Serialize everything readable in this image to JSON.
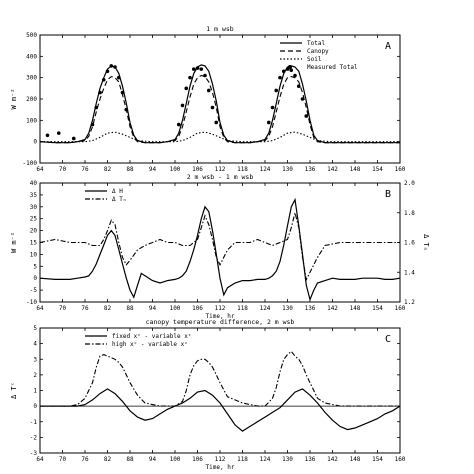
{
  "panel_titles": {
    "A": "1 m wsb",
    "B": "2 m wsb - 1 m wsb",
    "C": "canopy temperature difference, 2 m wsb"
  },
  "chart_data": [
    {
      "id": "A",
      "type": "line",
      "title": "1 m wsb",
      "panel_label": "A",
      "ylabel": "W m⁻²",
      "xlabel": "",
      "xlim": [
        64,
        160
      ],
      "ylim": [
        -100,
        500
      ],
      "xticks": [
        64,
        70,
        76,
        82,
        88,
        94,
        100,
        106,
        112,
        118,
        124,
        130,
        136,
        142,
        148,
        154,
        160
      ],
      "yticks": [
        -100,
        0,
        100,
        200,
        300,
        400,
        500
      ],
      "tick_labels_y": [
        "-100",
        "0",
        "100",
        "200",
        "300",
        "400",
        "500"
      ],
      "legend_position": "top-right",
      "series": [
        {
          "name": "Total",
          "style": "solid",
          "x": [
            64,
            68,
            72,
            74,
            76,
            77,
            78,
            79,
            80,
            81,
            82,
            83,
            84,
            85,
            86,
            87,
            88,
            89,
            90,
            92,
            96,
            98,
            100,
            101,
            102,
            103,
            104,
            105,
            106,
            107,
            108,
            109,
            110,
            111,
            112,
            113,
            114,
            116,
            120,
            122,
            124,
            125,
            126,
            127,
            128,
            129,
            130,
            131,
            132,
            133,
            134,
            135,
            136,
            137,
            138,
            140,
            144,
            148,
            152,
            156,
            160
          ],
          "y": [
            0,
            -5,
            -5,
            0,
            10,
            40,
            100,
            180,
            250,
            300,
            340,
            355,
            350,
            320,
            260,
            180,
            90,
            30,
            5,
            -5,
            -5,
            0,
            10,
            40,
            100,
            180,
            260,
            320,
            350,
            360,
            355,
            330,
            270,
            190,
            90,
            30,
            5,
            -5,
            -5,
            0,
            10,
            40,
            100,
            180,
            260,
            320,
            350,
            355,
            350,
            330,
            270,
            190,
            100,
            30,
            5,
            -5,
            -5,
            -5,
            -5,
            -5,
            -5
          ]
        },
        {
          "name": "Canopy",
          "style": "dashed",
          "x": [
            64,
            68,
            72,
            74,
            76,
            77,
            78,
            79,
            80,
            81,
            82,
            83,
            84,
            85,
            86,
            87,
            88,
            89,
            90,
            92,
            96,
            98,
            100,
            101,
            102,
            103,
            104,
            105,
            106,
            107,
            108,
            109,
            110,
            111,
            112,
            113,
            114,
            116,
            120,
            122,
            124,
            125,
            126,
            127,
            128,
            129,
            130,
            131,
            132,
            133,
            134,
            135,
            136,
            137,
            138,
            140,
            144,
            148,
            152,
            156,
            160
          ],
          "y": [
            0,
            -5,
            -5,
            0,
            5,
            25,
            70,
            140,
            200,
            250,
            290,
            305,
            300,
            280,
            220,
            150,
            70,
            20,
            0,
            -5,
            -5,
            0,
            5,
            25,
            70,
            140,
            210,
            270,
            300,
            310,
            305,
            280,
            230,
            160,
            70,
            20,
            0,
            -5,
            -5,
            0,
            5,
            25,
            70,
            140,
            210,
            270,
            300,
            305,
            300,
            280,
            230,
            160,
            80,
            20,
            0,
            -5,
            -5,
            -5,
            -5,
            -5,
            -5
          ]
        },
        {
          "name": "Soil",
          "style": "dotted",
          "x": [
            64,
            70,
            76,
            78,
            80,
            82,
            84,
            86,
            88,
            90,
            94,
            100,
            102,
            104,
            106,
            108,
            110,
            112,
            114,
            118,
            124,
            126,
            128,
            130,
            132,
            134,
            136,
            138,
            142,
            148,
            154,
            160
          ],
          "y": [
            0,
            0,
            0,
            5,
            20,
            40,
            45,
            35,
            20,
            5,
            0,
            0,
            5,
            20,
            40,
            45,
            35,
            20,
            5,
            0,
            0,
            5,
            20,
            40,
            45,
            35,
            20,
            5,
            0,
            0,
            0,
            0
          ]
        },
        {
          "name": "Measured Total",
          "style": "markers",
          "x": [
            66,
            69,
            73,
            78,
            79,
            80,
            81,
            82,
            83,
            84,
            85,
            86,
            87,
            101,
            102,
            103,
            104,
            105,
            106,
            107,
            108,
            109,
            110,
            111,
            125,
            126,
            127,
            128,
            129,
            130,
            131,
            132,
            133,
            134,
            135
          ],
          "y": [
            30,
            40,
            15,
            80,
            160,
            230,
            290,
            330,
            355,
            350,
            300,
            230,
            150,
            80,
            170,
            250,
            300,
            340,
            345,
            340,
            310,
            240,
            160,
            90,
            90,
            160,
            240,
            300,
            330,
            340,
            335,
            310,
            260,
            200,
            120
          ]
        }
      ]
    },
    {
      "id": "B",
      "type": "line",
      "title": "2 m wsb - 1 m wsb",
      "panel_label": "B",
      "ylabel": "W m⁻²",
      "ylabel_right": "Δ Tₙ",
      "xlabel": "Time, hr",
      "xlim": [
        64,
        160
      ],
      "ylim": [
        -10,
        40
      ],
      "y2lim": [
        1.2,
        2.0
      ],
      "xticks": [
        64,
        70,
        76,
        82,
        88,
        94,
        100,
        106,
        112,
        118,
        124,
        130,
        136,
        142,
        148,
        154,
        160
      ],
      "yticks": [
        -10,
        -5,
        0,
        5,
        10,
        15,
        20,
        25,
        30,
        35,
        40
      ],
      "y2ticks": [
        1.2,
        1.4,
        1.6,
        1.8,
        2.0
      ],
      "tick_labels_y": [
        "-10",
        "-5",
        "0",
        "5",
        "10",
        "15",
        "20",
        "25",
        "30",
        "35",
        "40"
      ],
      "tick_labels_y2": [
        "1.2",
        "1.4",
        "1.6",
        "1.8",
        "2.0"
      ],
      "legend_position": "top-left",
      "series": [
        {
          "name": "Δ H",
          "style": "solid",
          "axis": "left",
          "x": [
            64,
            68,
            72,
            74,
            76,
            77,
            78,
            79,
            80,
            81,
            82,
            83,
            84,
            85,
            86,
            87,
            88,
            89,
            90,
            91,
            92,
            94,
            96,
            98,
            100,
            101,
            102,
            103,
            104,
            105,
            106,
            107,
            108,
            109,
            110,
            111,
            112,
            113,
            114,
            116,
            118,
            120,
            122,
            124,
            125,
            126,
            127,
            128,
            129,
            130,
            131,
            132,
            133,
            134,
            135,
            136,
            137,
            138,
            140,
            142,
            144,
            146,
            148,
            150,
            152,
            154,
            156,
            158,
            160
          ],
          "y": [
            0,
            -0.5,
            -0.5,
            0,
            0.5,
            1,
            3,
            6,
            10,
            14,
            18,
            20,
            18,
            12,
            6,
            0,
            -5,
            -8,
            -3,
            2,
            1,
            -1,
            -2,
            -1,
            -0.5,
            0,
            1,
            3,
            7,
            12,
            18,
            25,
            30,
            28,
            20,
            10,
            0,
            -7,
            -4,
            -2,
            -1,
            -1,
            -0.5,
            -0.5,
            0,
            1,
            3,
            7,
            14,
            22,
            30,
            33,
            22,
            10,
            -3,
            -9,
            -5,
            -2,
            -1,
            0,
            -0.5,
            -0.5,
            -0.5,
            0,
            0,
            0,
            -0.5,
            -0.5,
            0
          ]
        },
        {
          "name": "Δ Tₙ",
          "style": "dash-dot",
          "axis": "right",
          "x": [
            64,
            68,
            72,
            74,
            76,
            78,
            80,
            81,
            82,
            83,
            84,
            85,
            86,
            87,
            88,
            90,
            92,
            94,
            96,
            98,
            100,
            102,
            104,
            106,
            107,
            108,
            109,
            110,
            111,
            112,
            114,
            116,
            118,
            120,
            122,
            124,
            126,
            128,
            130,
            131,
            132,
            133,
            134,
            135,
            136,
            138,
            140,
            144,
            148,
            152,
            156,
            160
          ],
          "y": [
            1.6,
            1.62,
            1.6,
            1.6,
            1.6,
            1.58,
            1.58,
            1.62,
            1.68,
            1.75,
            1.72,
            1.6,
            1.5,
            1.45,
            1.48,
            1.55,
            1.58,
            1.6,
            1.62,
            1.6,
            1.6,
            1.58,
            1.58,
            1.62,
            1.7,
            1.78,
            1.72,
            1.62,
            1.5,
            1.45,
            1.55,
            1.6,
            1.6,
            1.6,
            1.62,
            1.6,
            1.58,
            1.6,
            1.62,
            1.7,
            1.8,
            1.7,
            1.5,
            1.35,
            1.4,
            1.5,
            1.58,
            1.6,
            1.6,
            1.6,
            1.6,
            1.6
          ]
        }
      ]
    },
    {
      "id": "C",
      "type": "line",
      "title": "canopy temperature difference, 2 m wsb",
      "panel_label": "C",
      "ylabel": "Δ Tᶜ",
      "xlabel": "Time, hr",
      "xlim": [
        64,
        160
      ],
      "ylim": [
        -3,
        5
      ],
      "xticks": [
        64,
        70,
        76,
        82,
        88,
        94,
        100,
        106,
        112,
        118,
        124,
        130,
        136,
        142,
        148,
        154,
        160
      ],
      "yticks": [
        -3,
        -2,
        -1,
        0,
        1,
        2,
        3,
        4,
        5
      ],
      "tick_labels_y": [
        "-3",
        "-2",
        "-1",
        "0",
        "1",
        "2",
        "3",
        "4",
        "5"
      ],
      "legend_position": "top-left",
      "series": [
        {
          "name": "fixed xᶜ - variable xᶜ",
          "style": "solid",
          "x": [
            64,
            68,
            72,
            74,
            76,
            78,
            80,
            82,
            84,
            86,
            88,
            90,
            92,
            94,
            96,
            98,
            100,
            102,
            104,
            106,
            108,
            110,
            112,
            114,
            116,
            118,
            120,
            122,
            124,
            126,
            128,
            130,
            132,
            134,
            136,
            138,
            140,
            142,
            144,
            146,
            148,
            150,
            152,
            154,
            156,
            158,
            160
          ],
          "y": [
            0,
            0,
            0,
            0,
            0.1,
            0.4,
            0.8,
            1.1,
            0.8,
            0.3,
            -0.3,
            -0.7,
            -0.9,
            -0.8,
            -0.5,
            -0.2,
            0,
            0.2,
            0.5,
            0.9,
            1.0,
            0.7,
            0.2,
            -0.5,
            -1.2,
            -1.6,
            -1.3,
            -1.0,
            -0.7,
            -0.4,
            -0.1,
            0.4,
            0.9,
            1.1,
            0.7,
            0.2,
            -0.4,
            -0.9,
            -1.3,
            -1.5,
            -1.4,
            -1.2,
            -1.0,
            -0.8,
            -0.5,
            -0.3,
            0
          ]
        },
        {
          "name": "high xᶜ - variable xᶜ",
          "style": "dash-dot",
          "x": [
            64,
            68,
            72,
            74,
            76,
            78,
            79,
            80,
            81,
            82,
            83,
            84,
            85,
            86,
            87,
            88,
            90,
            92,
            96,
            98,
            100,
            102,
            103,
            104,
            105,
            106,
            107,
            108,
            109,
            110,
            111,
            112,
            114,
            118,
            122,
            124,
            126,
            127,
            128,
            129,
            130,
            131,
            132,
            133,
            134,
            135,
            136,
            137,
            138,
            140,
            144,
            148,
            152,
            156,
            160
          ],
          "y": [
            0,
            0,
            0,
            0.1,
            0.5,
            1.5,
            2.5,
            3.2,
            3.3,
            3.2,
            3.1,
            3.0,
            2.8,
            2.5,
            2.0,
            1.5,
            0.7,
            0.2,
            0,
            0,
            0,
            0.3,
            1.0,
            2.0,
            2.6,
            2.9,
            3.0,
            3.0,
            2.8,
            2.5,
            2.0,
            1.5,
            0.6,
            0.2,
            0,
            0,
            0.5,
            1.2,
            2.2,
            3.0,
            3.3,
            3.5,
            3.2,
            3.0,
            2.6,
            2.0,
            1.5,
            1.0,
            0.5,
            0.2,
            0,
            0,
            0,
            0,
            0
          ]
        }
      ]
    }
  ]
}
